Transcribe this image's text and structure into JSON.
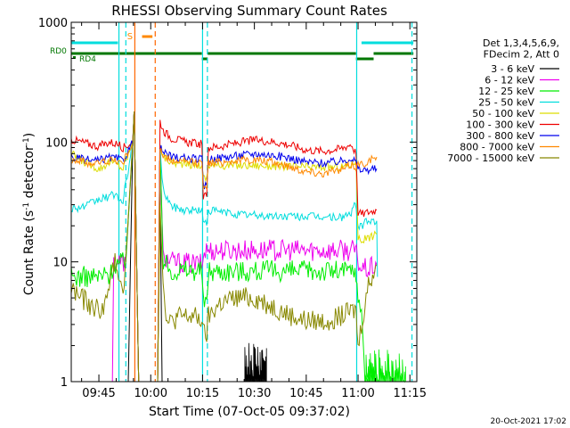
{
  "chart_data": {
    "type": "line",
    "title": "RHESSI Observing Summary Count Rates",
    "xlabel": "Start Time (07-Oct-05 09:37:02)",
    "ylabel_parts": [
      "Count Rate (s",
      "-1",
      " detector",
      "-1",
      ")"
    ],
    "yscale": "log",
    "ylim": [
      1,
      1000
    ],
    "y_ticks": [
      {
        "v": 1,
        "label": "1"
      },
      {
        "v": 10,
        "label": "10"
      },
      {
        "v": 100,
        "label": "100"
      },
      {
        "v": 1000,
        "label": "1000"
      }
    ],
    "x_range_min": [
      577,
      677
    ],
    "x_ticks": [
      {
        "t": 585,
        "label": "09:45"
      },
      {
        "t": 600,
        "label": "10:00"
      },
      {
        "t": 615,
        "label": "10:15"
      },
      {
        "t": 630,
        "label": "10:30"
      },
      {
        "t": 645,
        "label": "10:45"
      },
      {
        "t": 660,
        "label": "11:00"
      },
      {
        "t": 675,
        "label": "11:15"
      }
    ],
    "footer_date": "20-Oct-2021 17:02",
    "legend_header": [
      "Det 1,3,4,5,6,9,",
      "FDecim 2, Att 0"
    ],
    "series": [
      {
        "name": "3 - 6 keV",
        "color": "#000000",
        "points": [
          [
            593.5,
            1
          ],
          [
            594.8,
            100
          ],
          [
            595.2,
            180
          ],
          [
            596.5,
            1
          ],
          [
            602,
            1
          ],
          [
            602.6,
            70
          ],
          [
            603.3,
            1
          ]
        ]
      },
      {
        "name": "6 - 12 keV",
        "color": "#ee00ee",
        "points": [
          [
            588.9,
            1
          ],
          [
            589.3,
            10
          ],
          [
            592.8,
            10
          ],
          [
            594.8,
            100
          ],
          [
            595.2,
            180
          ],
          [
            596.5,
            1
          ],
          [
            602,
            1
          ],
          [
            602.7,
            90
          ],
          [
            603.6,
            11
          ],
          [
            606,
            10
          ],
          [
            615,
            9.5
          ],
          [
            615.5,
            12.5
          ],
          [
            640,
            12.5
          ],
          [
            659,
            12.5
          ],
          [
            659.8,
            11
          ],
          [
            660.5,
            9
          ],
          [
            663,
            8.6
          ],
          [
            665.4,
            9.5
          ]
        ]
      },
      {
        "name": "12 - 25 keV",
        "color": "#00ee00",
        "points": [
          [
            577,
            7.5
          ],
          [
            585,
            7.5
          ],
          [
            588.5,
            8
          ],
          [
            589.2,
            9.5
          ],
          [
            592.8,
            10
          ],
          [
            594.8,
            100
          ],
          [
            595.2,
            180
          ],
          [
            596.5,
            1
          ],
          [
            602,
            1
          ],
          [
            602.7,
            90
          ],
          [
            603.6,
            10
          ],
          [
            606,
            8.5
          ],
          [
            614.8,
            8.5
          ],
          [
            615.2,
            4.5
          ],
          [
            616.2,
            4.5
          ],
          [
            616.7,
            8.4
          ],
          [
            640,
            8.4
          ],
          [
            658,
            8.4
          ],
          [
            659.4,
            8.4
          ],
          [
            660,
            4.3
          ],
          [
            661,
            4
          ],
          [
            662,
            1.1
          ],
          [
            665.4,
            1.1
          ]
        ]
      },
      {
        "name": "25 - 50 keV",
        "color": "#00dddd",
        "points": [
          [
            577,
            28
          ],
          [
            581,
            29
          ],
          [
            585,
            33
          ],
          [
            588,
            35
          ],
          [
            590,
            37
          ],
          [
            592,
            30
          ],
          [
            592.5,
            40
          ],
          [
            594.8,
            100
          ],
          [
            595.2,
            180
          ],
          [
            596.5,
            1
          ],
          [
            602,
            1
          ],
          [
            602.7,
            90
          ],
          [
            603.6,
            40
          ],
          [
            606,
            29
          ],
          [
            610,
            27
          ],
          [
            614.8,
            27
          ],
          [
            615.2,
            21
          ],
          [
            616.2,
            21
          ],
          [
            616.7,
            27
          ],
          [
            625,
            25
          ],
          [
            635,
            24
          ],
          [
            645,
            24
          ],
          [
            655,
            23.5
          ],
          [
            658,
            25.5
          ],
          [
            659.2,
            30
          ],
          [
            660,
            20
          ],
          [
            661,
            20
          ],
          [
            663,
            22
          ],
          [
            665.4,
            22
          ],
          [
            665.6,
            7.5
          ]
        ]
      },
      {
        "name": "50 - 100 keV",
        "color": "#dddd00",
        "points": [
          [
            577,
            80
          ],
          [
            580,
            70
          ],
          [
            583,
            64
          ],
          [
            585,
            60
          ],
          [
            588,
            68
          ],
          [
            590,
            66
          ],
          [
            592,
            60
          ],
          [
            594.8,
            100
          ],
          [
            595.2,
            180
          ],
          [
            596.5,
            1
          ],
          [
            602,
            1
          ],
          [
            602.7,
            95
          ],
          [
            603.6,
            75
          ],
          [
            606,
            68
          ],
          [
            610,
            65
          ],
          [
            614.8,
            64
          ],
          [
            615.2,
            50
          ],
          [
            616.2,
            50
          ],
          [
            616.7,
            64
          ],
          [
            630,
            64
          ],
          [
            645,
            62
          ],
          [
            655,
            62
          ],
          [
            658,
            65
          ],
          [
            659.4,
            70
          ],
          [
            660,
            16
          ],
          [
            661,
            15
          ],
          [
            663,
            16
          ],
          [
            665.4,
            17
          ]
        ]
      },
      {
        "name": "100 - 300 keV",
        "color": "#ee0000",
        "points": [
          [
            577,
            105
          ],
          [
            580,
            100
          ],
          [
            583,
            95
          ],
          [
            585,
            92
          ],
          [
            588,
            100
          ],
          [
            590,
            97
          ],
          [
            592,
            90
          ],
          [
            594.8,
            100
          ],
          [
            595.2,
            180
          ],
          [
            596.5,
            1
          ],
          [
            602,
            1
          ],
          [
            602.7,
            150
          ],
          [
            603.6,
            125
          ],
          [
            606,
            108
          ],
          [
            610,
            100
          ],
          [
            614.8,
            96
          ],
          [
            615.2,
            35
          ],
          [
            616.2,
            35
          ],
          [
            616.7,
            90
          ],
          [
            620,
            92
          ],
          [
            625,
            98
          ],
          [
            630,
            104
          ],
          [
            635,
            101
          ],
          [
            640,
            95
          ],
          [
            645,
            86
          ],
          [
            650,
            84
          ],
          [
            655,
            88
          ],
          [
            658,
            96
          ],
          [
            659.4,
            80
          ],
          [
            660,
            26
          ],
          [
            661,
            25
          ],
          [
            663,
            26
          ],
          [
            665.4,
            27
          ]
        ]
      },
      {
        "name": "300 - 800 keV",
        "color": "#0000ee",
        "points": [
          [
            577,
            75
          ],
          [
            580,
            72
          ],
          [
            583,
            70
          ],
          [
            585,
            70
          ],
          [
            588,
            74
          ],
          [
            590,
            73
          ],
          [
            592,
            70
          ],
          [
            594.8,
            100
          ],
          [
            595.2,
            180
          ],
          [
            596.5,
            1
          ],
          [
            602,
            1
          ],
          [
            602.7,
            90
          ],
          [
            603.6,
            82
          ],
          [
            606,
            75
          ],
          [
            610,
            73
          ],
          [
            614.8,
            72
          ],
          [
            615.2,
            43
          ],
          [
            616.2,
            43
          ],
          [
            616.7,
            72
          ],
          [
            620,
            74
          ],
          [
            625,
            77
          ],
          [
            630,
            80
          ],
          [
            635,
            78
          ],
          [
            640,
            74
          ],
          [
            645,
            68
          ],
          [
            650,
            67
          ],
          [
            655,
            69
          ],
          [
            658,
            74
          ],
          [
            659.4,
            68
          ],
          [
            660,
            60
          ],
          [
            661,
            58
          ],
          [
            663,
            59
          ],
          [
            665.4,
            60
          ]
        ]
      },
      {
        "name": "800 - 7000 keV",
        "color": "#ff8800",
        "points": [
          [
            577,
            72
          ],
          [
            580,
            69
          ],
          [
            583,
            66
          ],
          [
            585,
            67
          ],
          [
            588,
            71
          ],
          [
            590,
            70
          ],
          [
            592,
            67
          ],
          [
            594.8,
            100
          ],
          [
            595.2,
            180
          ],
          [
            596.5,
            1
          ],
          [
            602,
            1
          ],
          [
            602.7,
            88
          ],
          [
            603.6,
            75
          ],
          [
            606,
            70
          ],
          [
            610,
            68
          ],
          [
            614.8,
            67
          ],
          [
            615.2,
            44
          ],
          [
            616.2,
            44
          ],
          [
            616.7,
            67
          ],
          [
            620,
            68
          ],
          [
            625,
            70
          ],
          [
            630,
            71
          ],
          [
            635,
            68
          ],
          [
            640,
            63
          ],
          [
            645,
            57
          ],
          [
            650,
            55
          ],
          [
            655,
            58
          ],
          [
            658,
            65
          ],
          [
            659.4,
            62
          ],
          [
            660,
            66
          ],
          [
            661,
            65
          ],
          [
            663,
            70
          ],
          [
            665.4,
            75
          ]
        ]
      },
      {
        "name": "7000 - 15000 keV",
        "color": "#888800",
        "points": [
          [
            577,
            6
          ],
          [
            580,
            5
          ],
          [
            583,
            4.2
          ],
          [
            585,
            4
          ],
          [
            587,
            4.5
          ],
          [
            588,
            6
          ],
          [
            589,
            9
          ],
          [
            590,
            10
          ],
          [
            592,
            6
          ],
          [
            592.6,
            9
          ],
          [
            594.8,
            100
          ],
          [
            595.2,
            180
          ],
          [
            596.5,
            1
          ],
          [
            602,
            1
          ],
          [
            602.7,
            30
          ],
          [
            603.6,
            6
          ],
          [
            605,
            3
          ],
          [
            608,
            3.5
          ],
          [
            612,
            3.5
          ],
          [
            614.8,
            3.3
          ],
          [
            615.2,
            2.5
          ],
          [
            616.2,
            2.5
          ],
          [
            616.7,
            3.5
          ],
          [
            620,
            4.5
          ],
          [
            625,
            5
          ],
          [
            630,
            5
          ],
          [
            635,
            4.3
          ],
          [
            640,
            3.6
          ],
          [
            645,
            3.2
          ],
          [
            650,
            3.2
          ],
          [
            655,
            3.5
          ],
          [
            659.4,
            4
          ],
          [
            660,
            1.9
          ],
          [
            661,
            3
          ],
          [
            663,
            6.5
          ],
          [
            665.4,
            9.5
          ]
        ]
      }
    ],
    "flags": {
      "saa_label": "S",
      "rd0_label": "RD0",
      "rd4_label": "RD4",
      "top_cyan_segments": [
        [
          577,
          590.5
        ],
        [
          661,
          676
        ]
      ],
      "top_orange_segments": [
        [
          597.5,
          600.5
        ]
      ],
      "rd0_segments": [
        [
          577,
          614.8
        ],
        [
          616.5,
          659.4
        ],
        [
          664.5,
          676
        ]
      ],
      "rd0_low_segments": [
        [
          614.8,
          616.5
        ],
        [
          659.4,
          664.5
        ]
      ]
    },
    "vlines": [
      {
        "t": 590.8,
        "color": "#00dddd",
        "dash": false
      },
      {
        "t": 592.8,
        "color": "#00dddd",
        "dash": true
      },
      {
        "t": 595.4,
        "color": "#ff6600",
        "dash": false
      },
      {
        "t": 601.3,
        "color": "#ff6600",
        "dash": true
      },
      {
        "t": 615.0,
        "color": "#00dddd",
        "dash": false
      },
      {
        "t": 616.4,
        "color": "#00dddd",
        "dash": true
      },
      {
        "t": 659.6,
        "color": "#00dddd",
        "dash": false
      },
      {
        "t": 675.6,
        "color": "#00dddd",
        "dash": true
      }
    ]
  }
}
